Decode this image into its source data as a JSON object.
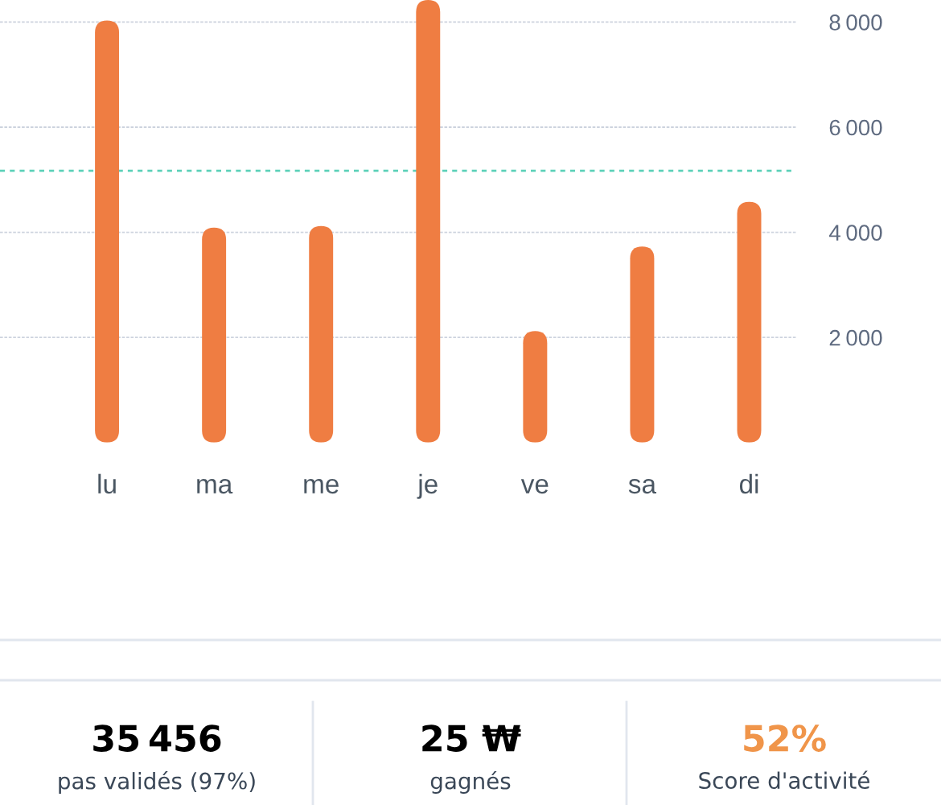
{
  "chart_data": [
    {
      "type": "bar",
      "categories": [
        "lu",
        "ma",
        "me",
        "je",
        "ve",
        "sa",
        "di"
      ],
      "values": [
        8030,
        4090,
        4120,
        8420,
        2120,
        3730,
        4580
      ],
      "color": "#ef7d42",
      "ylim": [
        0,
        8420
      ],
      "yticks": [
        {
          "value": 2000,
          "label": "2 000"
        },
        {
          "value": 4000,
          "label": "4 000"
        },
        {
          "value": 6000,
          "label": "6 000"
        },
        {
          "value": 8000,
          "label": "8 000"
        }
      ],
      "grid": "y",
      "ref_lines": [
        {
          "axis": "y",
          "value": 5170,
          "color": "#5dd1b9",
          "line_style": "dashed"
        }
      ]
    },
    {
      "type": "other",
      "annotations": [
        "35 456",
        "pas validés (97%)",
        "25 ₩",
        "gagnés",
        "52%",
        "Score d'activité"
      ]
    }
  ]
}
